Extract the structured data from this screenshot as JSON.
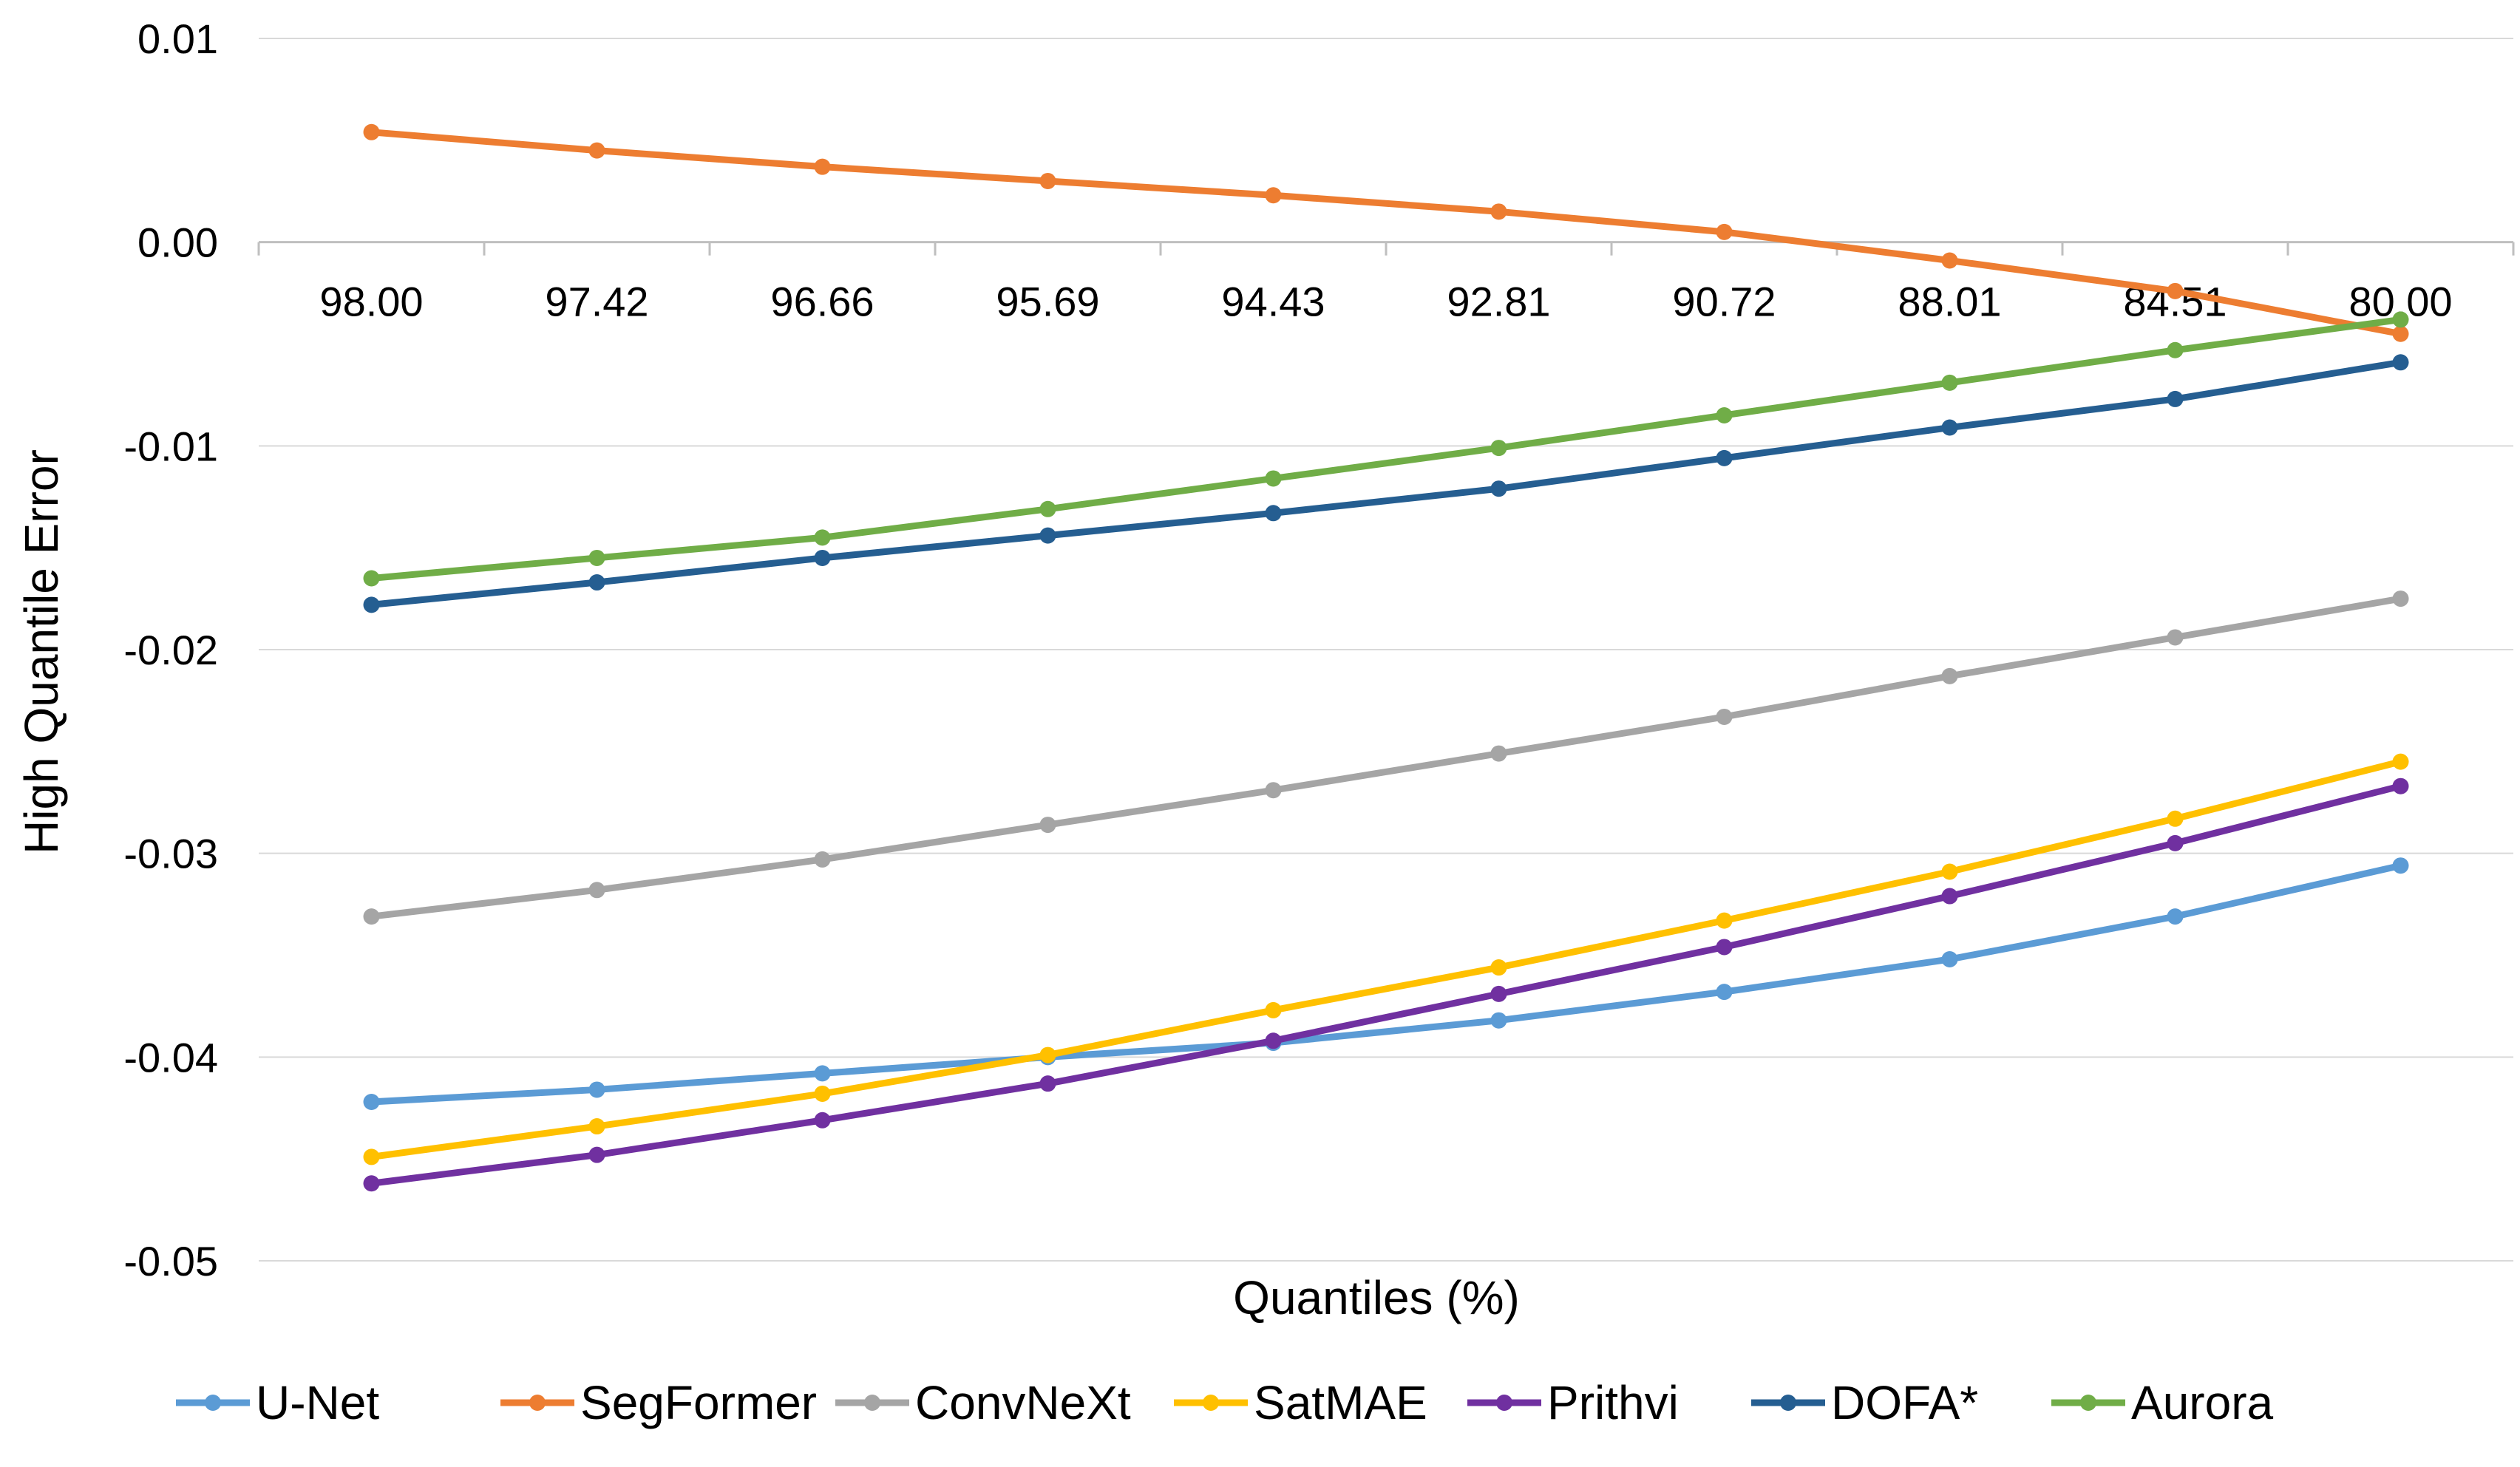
{
  "chart_data": {
    "type": "line",
    "title": "",
    "xlabel": "Quantiles (%)",
    "ylabel": "High Quantile Error",
    "categories": [
      "98.00",
      "97.42",
      "96.66",
      "95.69",
      "94.43",
      "92.81",
      "90.72",
      "88.01",
      "84.51",
      "80.00"
    ],
    "ylim": [
      -0.05,
      0.01
    ],
    "yticks": [
      0.01,
      0.0,
      -0.01,
      -0.02,
      -0.03,
      -0.04,
      -0.05
    ],
    "ytick_labels": [
      "0.01",
      "0.00",
      "-0.01",
      "-0.02",
      "-0.03",
      "-0.04",
      "-0.05"
    ],
    "grid": true,
    "legend_position": "bottom",
    "series": [
      {
        "name": "U-Net",
        "color": "#5B9BD5",
        "values": [
          -0.0422,
          -0.0416,
          -0.0408,
          -0.04,
          -0.0393,
          -0.0382,
          -0.0368,
          -0.0352,
          -0.0331,
          -0.0306
        ]
      },
      {
        "name": "SegFormer",
        "color": "#ED7D31",
        "values": [
          0.0054,
          0.0045,
          0.0037,
          0.003,
          0.0023,
          0.0015,
          0.0005,
          -0.0009,
          -0.0024,
          -0.0045
        ]
      },
      {
        "name": "ConvNeXt",
        "color": "#A5A5A5",
        "values": [
          -0.0331,
          -0.0318,
          -0.0303,
          -0.0286,
          -0.0269,
          -0.0251,
          -0.0233,
          -0.0213,
          -0.0194,
          -0.0175
        ]
      },
      {
        "name": "SatMAE",
        "color": "#FFC000",
        "values": [
          -0.0449,
          -0.0434,
          -0.0418,
          -0.0399,
          -0.0377,
          -0.0356,
          -0.0333,
          -0.0309,
          -0.0283,
          -0.0255
        ]
      },
      {
        "name": "Prithvi",
        "color": "#7030A0",
        "values": [
          -0.0462,
          -0.0448,
          -0.0431,
          -0.0413,
          -0.0392,
          -0.0369,
          -0.0346,
          -0.0321,
          -0.0295,
          -0.0267
        ]
      },
      {
        "name": "DOFA*",
        "color": "#255E91",
        "values": [
          -0.0178,
          -0.0167,
          -0.0155,
          -0.0144,
          -0.0133,
          -0.0121,
          -0.0106,
          -0.0091,
          -0.0077,
          -0.0059
        ]
      },
      {
        "name": "Aurora",
        "color": "#70AD47",
        "values": [
          -0.0165,
          -0.0155,
          -0.0145,
          -0.0131,
          -0.0116,
          -0.0101,
          -0.0085,
          -0.0069,
          -0.0053,
          -0.0038
        ]
      }
    ]
  }
}
